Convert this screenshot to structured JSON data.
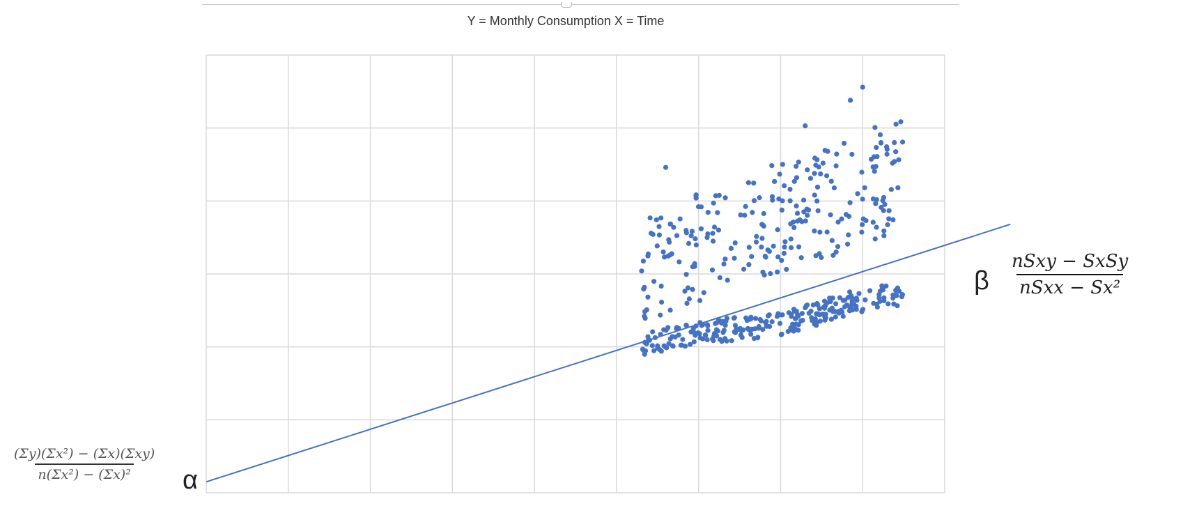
{
  "chart_data": {
    "type": "scatter",
    "title": "Y = Monthly Consumption X = Time",
    "xlabel": "",
    "ylabel": "",
    "xlim": [
      0,
      9
    ],
    "ylim": [
      0,
      6
    ],
    "grid": true,
    "x_gridlines": 9,
    "y_gridlines": 6,
    "series": [
      {
        "type": "scatter",
        "color": "#4472C4",
        "clusters": [
          {
            "x_range": [
              5.3,
              8.5
            ],
            "lower_band_y_start": 2.0,
            "lower_band_y_end": 2.7,
            "upper_band_y_start": 3.0,
            "upper_band_y_end": 4.3
          }
        ],
        "notable_points": [
          {
            "x": 5.6,
            "y": 4.46
          },
          {
            "x": 8.0,
            "y": 5.56
          },
          {
            "x": 7.85,
            "y": 5.38
          },
          {
            "x": 7.3,
            "y": 5.03
          }
        ]
      },
      {
        "type": "line",
        "color": "#4472C4",
        "x": [
          0,
          9.8
        ],
        "y": [
          0.15,
          3.68
        ]
      }
    ]
  },
  "annotations": {
    "alpha_symbol": "α",
    "alpha_formula_numerator": "(Σy)(Σx²) − (Σx)(Σxy)",
    "alpha_formula_denominator": "n(Σx²) − (Σx)²",
    "beta_symbol": "β",
    "beta_formula_numerator": "nSxy − SxSy",
    "beta_formula_denominator": "nSxx − Sx²"
  }
}
